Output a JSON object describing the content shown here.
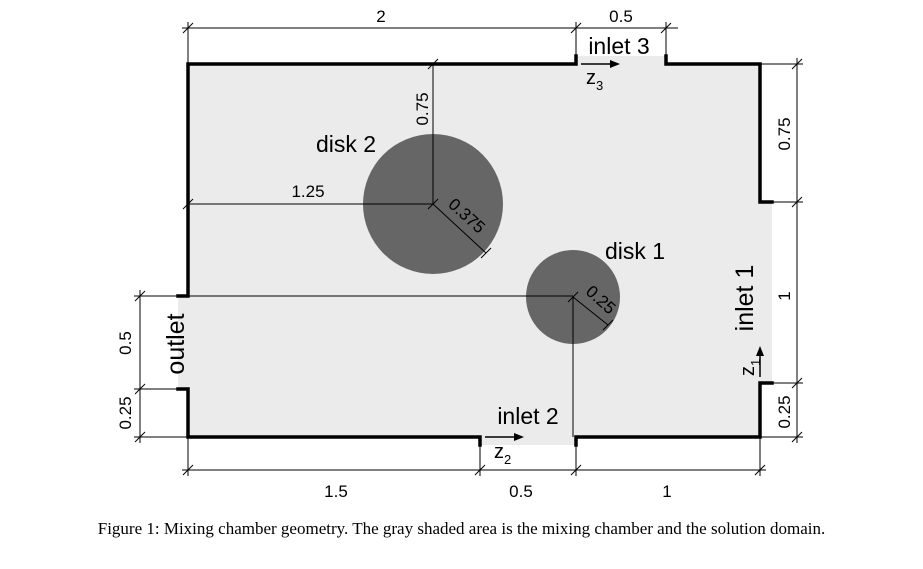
{
  "caption": "Figure 1: Mixing chamber geometry. The gray shaded area is the mixing chamber and the solution domain.",
  "colors": {
    "chamber": "#ebebeb",
    "disk": "#666666",
    "wall": "#000000"
  },
  "labels": {
    "disk1": "disk 1",
    "disk2": "disk 2",
    "inlet1": "inlet 1",
    "inlet2": "inlet 2",
    "inlet3": "inlet 3",
    "outlet": "outlet",
    "z": "z",
    "z1_sub": "1",
    "z2_sub": "2",
    "z3_sub": "3"
  },
  "dimensions": {
    "top_width": "2",
    "top_inlet3": "0.5",
    "bottom_left": "1.5",
    "bottom_inlet2": "0.5",
    "bottom_right": "1",
    "right_top": "0.75",
    "right_inlet1": "1",
    "right_bottom": "0.25",
    "left_outlet": "0.5",
    "left_bottom": "0.25",
    "disk2_vertical": "0.75",
    "disk2_horizontal": "1.25",
    "disk2_radius": "0.375",
    "disk1_radius": "0.25"
  }
}
